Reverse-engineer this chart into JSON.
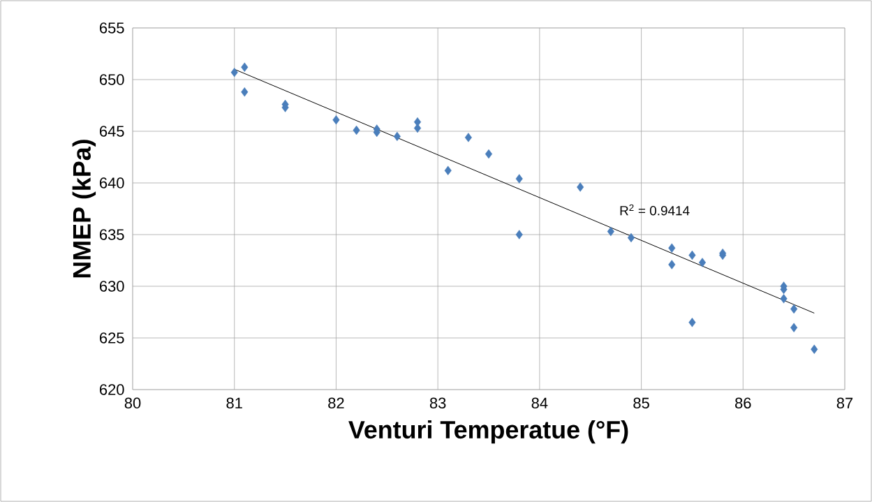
{
  "chart_data": {
    "type": "scatter",
    "xlabel": "Venturi Temperatue (°F)",
    "ylabel": "NMEP (kPa)",
    "xlim": [
      80,
      87
    ],
    "xticks": [
      80,
      81,
      82,
      83,
      84,
      85,
      86,
      87
    ],
    "ylim": [
      620,
      655
    ],
    "yticks": [
      620,
      625,
      630,
      635,
      640,
      645,
      650,
      655
    ],
    "grid": true,
    "marker": "diamond",
    "annotations": [
      "R$^{2}$ = 0.9414"
    ],
    "series": [
      {
        "color": "#4a7ebb",
        "x": [
          81,
          81.1,
          81.1,
          81.5,
          81.5,
          82,
          82.2,
          82.4,
          82.4,
          82.6,
          82.8,
          82.8,
          83.1,
          83.3,
          83.5,
          83.8,
          83.8,
          84.4,
          84.7,
          84.9,
          85.3,
          85.3,
          85.5,
          85.5,
          85.6,
          85.8,
          85.8,
          86.4,
          86.4,
          86.4,
          86.5,
          86.5,
          86.7
        ],
        "values": [
          650.7,
          651.2,
          648.8,
          647.6,
          647.3,
          646.1,
          645.1,
          645.2,
          644.9,
          644.5,
          645.9,
          645.3,
          641.2,
          644.4,
          642.8,
          640.4,
          635.0,
          639.6,
          635.3,
          634.7,
          633.7,
          632.1,
          633.0,
          626.5,
          632.3,
          633.2,
          633.0,
          630.0,
          629.7,
          628.8,
          627.8,
          626.0,
          623.9
        ]
      },
      {
        "type": "line",
        "color": "#000000",
        "marker": "none",
        "x": [
          81,
          86.7
        ],
        "values": [
          651.0,
          627.4
        ]
      }
    ]
  }
}
